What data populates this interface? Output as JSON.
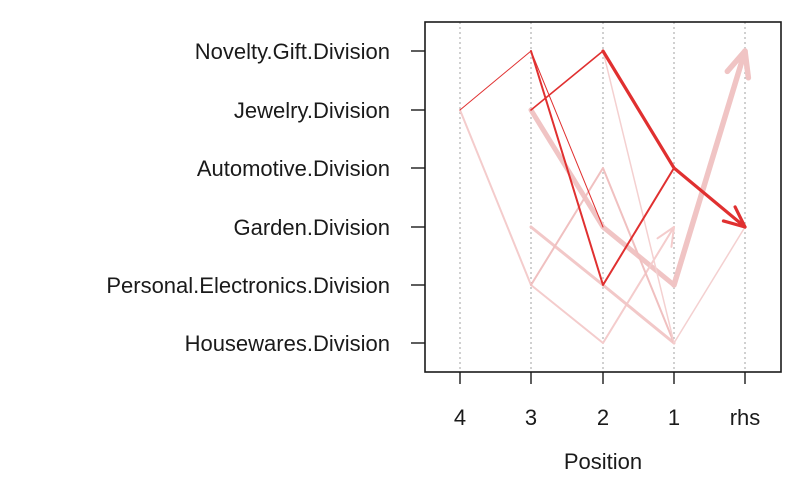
{
  "chart_data": {
    "type": "parallel-coordinates",
    "title": "",
    "xlabel": "Position",
    "ylabel": "",
    "x_categories": [
      "4",
      "3",
      "2",
      "1",
      "rhs"
    ],
    "y_categories": [
      "Novelty.Gift.Division",
      "Jewelry.Division",
      "Automotive.Division",
      "Garden.Division",
      "Personal.Electronics.Division",
      "Housewares.Division"
    ],
    "grid": "vertical dotted",
    "rules": [
      {
        "path": [
          null,
          null,
          "Novelty.Gift.Division",
          "Automotive.Division",
          "Garden.Division"
        ],
        "color": "#e03030",
        "width": 3.2,
        "arrow": true
      },
      {
        "path": [
          null,
          "Jewelry.Division",
          "Novelty.Gift.Division",
          "Automotive.Division"
        ],
        "color": "#e03030",
        "width": 1.6,
        "arrow": false
      },
      {
        "path": [
          null,
          "Novelty.Gift.Division",
          "Personal.Electronics.Division",
          "Automotive.Division"
        ],
        "color": "#e03030",
        "width": 2.0,
        "arrow": false
      },
      {
        "path": [
          "Jewelry.Division",
          "Novelty.Gift.Division",
          "Garden.Division"
        ],
        "color": "#e03030",
        "width": 1.0,
        "arrow": false
      },
      {
        "path": [
          null,
          null,
          null,
          "Personal.Electronics.Division",
          "Novelty.Gift.Division"
        ],
        "color": "#f0c4c4",
        "width": 5.5,
        "arrow": true
      },
      {
        "path": [
          null,
          "Jewelry.Division",
          "Garden.Division",
          "Personal.Electronics.Division"
        ],
        "color": "#f0c4c4",
        "width": 5.0,
        "arrow": false
      },
      {
        "path": [
          "Jewelry.Division",
          "Personal.Electronics.Division",
          "Housewares.Division",
          "Garden.Division"
        ],
        "color": "#f4cccc",
        "width": 2.0,
        "arrow": true
      },
      {
        "path": [
          null,
          "Garden.Division",
          "Personal.Electronics.Division",
          "Housewares.Division"
        ],
        "color": "#f2c8c8",
        "width": 3.0,
        "arrow": false
      },
      {
        "path": [
          null,
          "Personal.Electronics.Division",
          "Automotive.Division",
          "Housewares.Division"
        ],
        "color": "#f0c0c0",
        "width": 2.0,
        "arrow": false
      },
      {
        "path": [
          null,
          null,
          "Novelty.Gift.Division",
          "Housewares.Division"
        ],
        "color": "#f4d0d0",
        "width": 1.5,
        "arrow": false
      },
      {
        "path": [
          null,
          null,
          null,
          "Housewares.Division",
          "Garden.Division"
        ],
        "color": "#f4d0d0",
        "width": 1.5,
        "arrow": false
      }
    ]
  }
}
